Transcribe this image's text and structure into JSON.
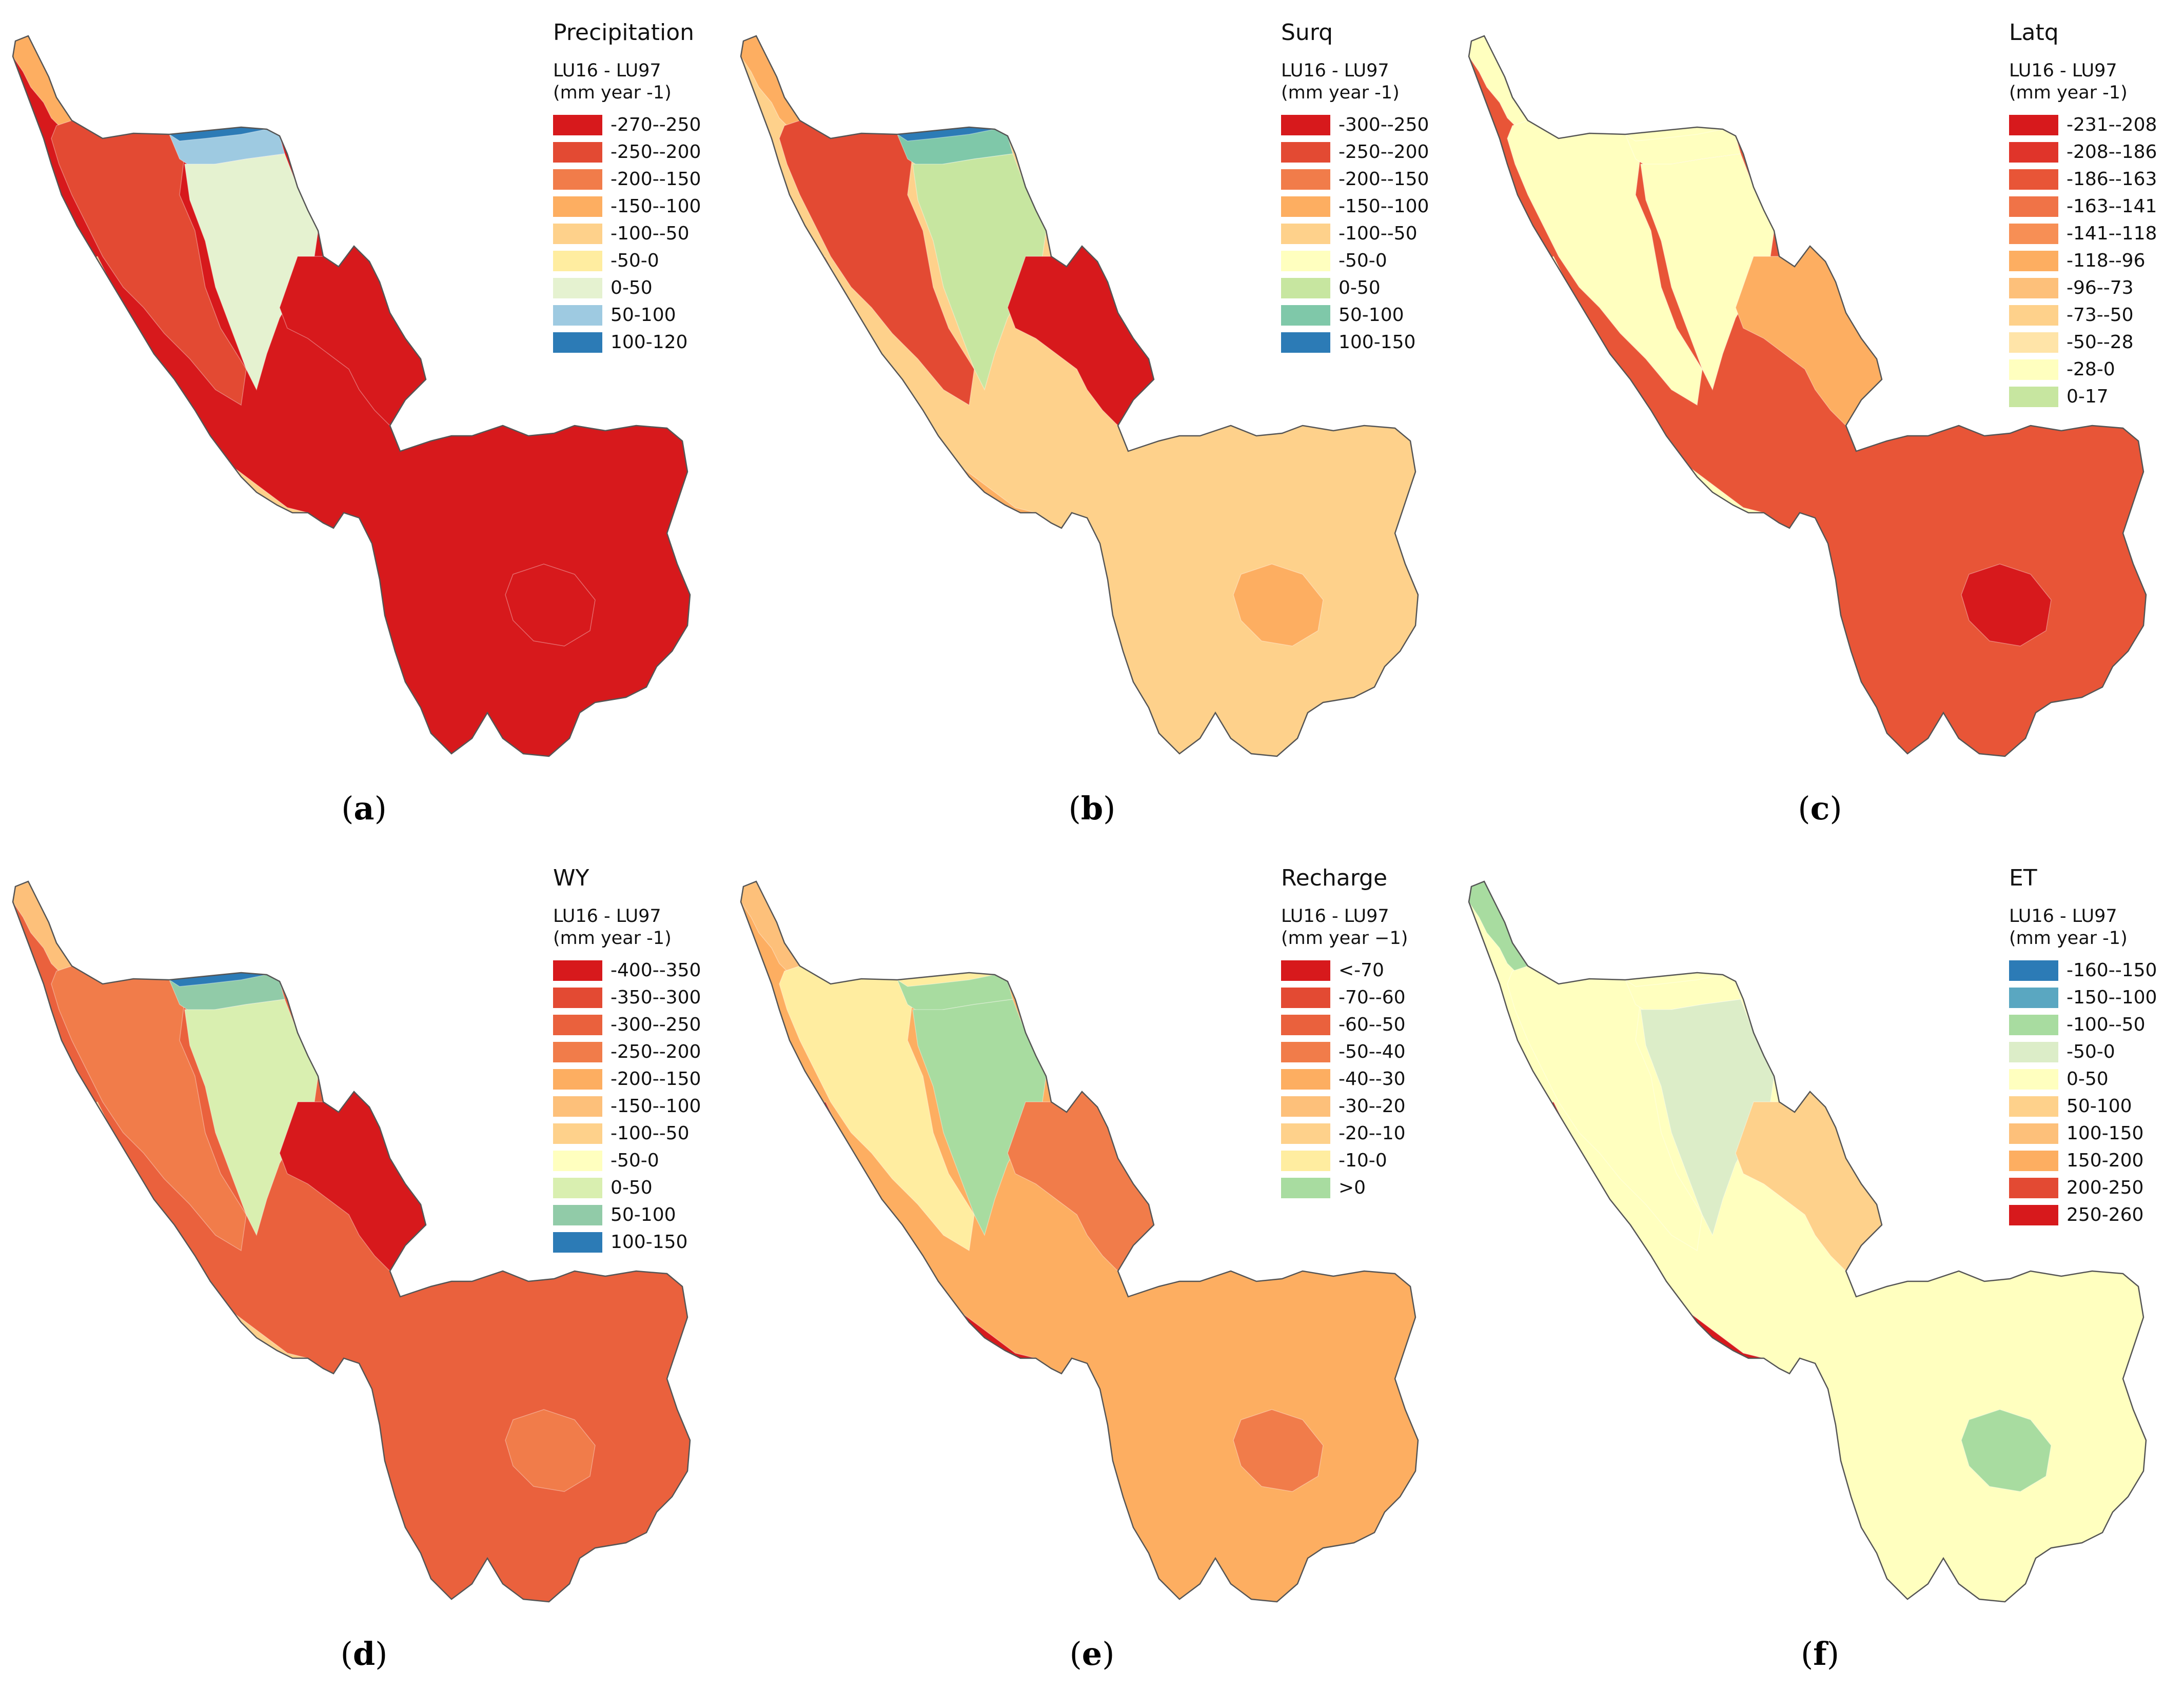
{
  "colors": {
    "r1": "#d7191c",
    "r2": "#e34a33",
    "r3": "#f17c4a",
    "r4": "#fdae61",
    "r5": "#fed18b",
    "r6": "#ffffbf",
    "g1": "#dcedc8",
    "g2": "#b7e0a6",
    "g3": "#7fc8a9",
    "b1": "#9ecae1",
    "b2": "#2c7bb6",
    "b3": "#5aa7c1",
    "boundary": "#555555"
  },
  "panels": [
    {
      "caption": "a",
      "title": "Precipitation",
      "subtitle1": "LU16 - LU97",
      "subtitle2": "(mm year -1)",
      "legend": [
        {
          "label": "-270--250",
          "color": "#d7191c"
        },
        {
          "label": "-250--200",
          "color": "#e34a33"
        },
        {
          "label": "-200--150",
          "color": "#f17c4a"
        },
        {
          "label": "-150--100",
          "color": "#fdae61"
        },
        {
          "label": "-100--50",
          "color": "#fed18b"
        },
        {
          "label": "-50-0",
          "color": "#ffeda0"
        },
        {
          "label": "0-50",
          "color": "#e5f2d0"
        },
        {
          "label": "50-100",
          "color": "#9ecae1"
        },
        {
          "label": "100-120",
          "color": "#2c7bb6"
        }
      ],
      "fills": {
        "main": "#d7191c",
        "west": "#e34a33",
        "center": "#e5f2d0",
        "north": "#9ecae1",
        "top": "#2c7bb6",
        "mid": "#d7191c",
        "coast": "#fed18b",
        "southPatch": "#d7191c",
        "tail": "#fdae61"
      }
    },
    {
      "caption": "b",
      "title": "Surq",
      "subtitle1": "LU16 - LU97",
      "subtitle2": "(mm year -1)",
      "legend": [
        {
          "label": "-300--250",
          "color": "#d7191c"
        },
        {
          "label": "-250--200",
          "color": "#e34a33"
        },
        {
          "label": "-200--150",
          "color": "#f17c4a"
        },
        {
          "label": "-150--100",
          "color": "#fdae61"
        },
        {
          "label": "-100--50",
          "color": "#fed18b"
        },
        {
          "label": "-50-0",
          "color": "#ffffbf"
        },
        {
          "label": "0-50",
          "color": "#c7e6a0"
        },
        {
          "label": "50-100",
          "color": "#7fc8a9"
        },
        {
          "label": "100-150",
          "color": "#2c7bb6"
        }
      ],
      "fills": {
        "main": "#fed18b",
        "west": "#e34a33",
        "center": "#c7e6a0",
        "north": "#7fc8a9",
        "top": "#2c7bb6",
        "mid": "#d7191c",
        "coast": "#fdae61",
        "southPatch": "#fdae61",
        "tail": "#fdae61"
      }
    },
    {
      "caption": "c",
      "title": "Latq",
      "subtitle1": "LU16 - LU97",
      "subtitle2": "(mm year -1)",
      "legend": [
        {
          "label": "-231--208",
          "color": "#d7191c"
        },
        {
          "label": "-208--186",
          "color": "#e0342a"
        },
        {
          "label": "-186--163",
          "color": "#e85537"
        },
        {
          "label": "-163--141",
          "color": "#f07347"
        },
        {
          "label": "-141--118",
          "color": "#f78f55"
        },
        {
          "label": "-118--96",
          "color": "#fdae61"
        },
        {
          "label": "-96--73",
          "color": "#fdc07a"
        },
        {
          "label": "-73--50",
          "color": "#fed18b"
        },
        {
          "label": "-50--28",
          "color": "#ffe4a8"
        },
        {
          "label": "-28-0",
          "color": "#ffffbf"
        },
        {
          "label": "0-17",
          "color": "#c7e6a0"
        }
      ],
      "fills": {
        "main": "#e85537",
        "west": "#ffffbf",
        "center": "#ffffbf",
        "north": "#ffffbf",
        "top": "#ffffbf",
        "mid": "#fdae61",
        "coast": "#ffffbf",
        "southPatch": "#d7191c",
        "tail": "#ffffbf"
      }
    },
    {
      "caption": "d",
      "title": "WY",
      "subtitle1": "LU16 - LU97",
      "subtitle2": "(mm year -1)",
      "legend": [
        {
          "label": "-400--350",
          "color": "#d7191c"
        },
        {
          "label": "-350--300",
          "color": "#e34a33"
        },
        {
          "label": "-300--250",
          "color": "#ea613d"
        },
        {
          "label": "-250--200",
          "color": "#f17c4a"
        },
        {
          "label": "-200--150",
          "color": "#fdae61"
        },
        {
          "label": "-150--100",
          "color": "#fdc07a"
        },
        {
          "label": "-100--50",
          "color": "#fed18b"
        },
        {
          "label": "-50-0",
          "color": "#ffffbf"
        },
        {
          "label": "0-50",
          "color": "#d9efb0"
        },
        {
          "label": "50-100",
          "color": "#91cba8"
        },
        {
          "label": "100-150",
          "color": "#2c7bb6"
        }
      ],
      "fills": {
        "main": "#ea613d",
        "west": "#f17c4a",
        "center": "#d9efb0",
        "north": "#91cba8",
        "top": "#2c7bb6",
        "mid": "#d7191c",
        "coast": "#fed18b",
        "southPatch": "#f17c4a",
        "tail": "#fdc07a"
      }
    },
    {
      "caption": "e",
      "title": "Recharge",
      "subtitle1": "LU16 - LU97",
      "subtitle2": "(mm year −1)",
      "legend": [
        {
          "label": "<-70",
          "color": "#d7191c"
        },
        {
          "label": "-70--60",
          "color": "#e34a33"
        },
        {
          "label": "-60--50",
          "color": "#ea613d"
        },
        {
          "label": "-50--40",
          "color": "#f17c4a"
        },
        {
          "label": "-40--30",
          "color": "#fdae61"
        },
        {
          "label": "-30--20",
          "color": "#fdc07a"
        },
        {
          "label": "-20--10",
          "color": "#fed18b"
        },
        {
          "label": "-10-0",
          "color": "#ffeda0"
        },
        {
          "label": ">0",
          "color": "#a8dca0"
        }
      ],
      "fills": {
        "main": "#fdae61",
        "west": "#ffeda0",
        "center": "#a8dca0",
        "north": "#a8dca0",
        "top": "#ffeda0",
        "mid": "#f17c4a",
        "coast": "#d7191c",
        "southPatch": "#f17c4a",
        "tail": "#fdc07a"
      }
    },
    {
      "caption": "f",
      "title": "ET",
      "subtitle1": "LU16 - LU97",
      "subtitle2": "(mm year -1)",
      "legend": [
        {
          "label": "-160--150",
          "color": "#2c7bb6"
        },
        {
          "label": "-150--100",
          "color": "#5aa7c1"
        },
        {
          "label": "-100--50",
          "color": "#a8dca0"
        },
        {
          "label": "-50-0",
          "color": "#dcedc8"
        },
        {
          "label": "0-50",
          "color": "#ffffbf"
        },
        {
          "label": "50-100",
          "color": "#fed18b"
        },
        {
          "label": "100-150",
          "color": "#fdc07a"
        },
        {
          "label": "150-200",
          "color": "#fdae61"
        },
        {
          "label": "200-250",
          "color": "#e34a33"
        },
        {
          "label": "250-260",
          "color": "#d7191c"
        }
      ],
      "fills": {
        "main": "#ffffbf",
        "west": "#ffffbf",
        "center": "#dcedc8",
        "north": "#ffffbf",
        "top": "#ffffbf",
        "mid": "#fed18b",
        "coast": "#d7191c",
        "southPatch": "#a8dca0",
        "tail": "#a8dca0"
      }
    }
  ]
}
